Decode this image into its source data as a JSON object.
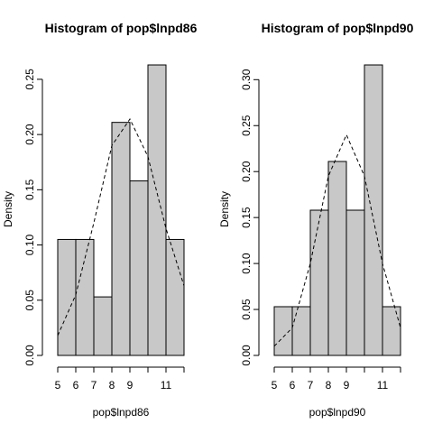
{
  "chart_data": [
    {
      "type": "bar",
      "title": "Histogram of pop$lnpd86",
      "xlabel": "pop$lnpd86",
      "ylabel": "Density",
      "bins": [
        [
          5,
          6
        ],
        [
          6,
          7
        ],
        [
          7,
          8
        ],
        [
          8,
          9
        ],
        [
          9,
          10
        ],
        [
          10,
          11
        ],
        [
          11,
          12
        ]
      ],
      "values": [
        0.105,
        0.105,
        0.053,
        0.211,
        0.158,
        0.263,
        0.105
      ],
      "xlim": [
        5,
        12
      ],
      "ylim": [
        0,
        0.263
      ],
      "xticks": [
        "5",
        "6",
        "7",
        "8",
        "9",
        "11"
      ],
      "yticks": [
        "0.00",
        "0.05",
        "0.10",
        "0.15",
        "0.20",
        "0.25"
      ],
      "density_curve": {
        "style": "dashed",
        "x": [
          5,
          6,
          7,
          8,
          9,
          10,
          11,
          12
        ],
        "y": [
          0.018,
          0.055,
          0.12,
          0.19,
          0.214,
          0.18,
          0.115,
          0.063
        ]
      }
    },
    {
      "type": "bar",
      "title": "Histogram of pop$lnpd90",
      "xlabel": "pop$lnpd90",
      "ylabel": "Density",
      "bins": [
        [
          5,
          6
        ],
        [
          6,
          7
        ],
        [
          7,
          8
        ],
        [
          8,
          9
        ],
        [
          9,
          10
        ],
        [
          10,
          11
        ],
        [
          11,
          12
        ]
      ],
      "values": [
        0.053,
        0.053,
        0.158,
        0.211,
        0.158,
        0.316,
        0.053
      ],
      "xlim": [
        5,
        12
      ],
      "ylim": [
        0,
        0.316
      ],
      "xticks": [
        "5",
        "6",
        "7",
        "8",
        "9",
        "11"
      ],
      "yticks": [
        "0.00",
        "0.05",
        "0.10",
        "0.15",
        "0.20",
        "0.25",
        "0.30"
      ],
      "density_curve": {
        "style": "dashed",
        "x": [
          5,
          6,
          7,
          8,
          9,
          10,
          11,
          12
        ],
        "y": [
          0.01,
          0.03,
          0.1,
          0.195,
          0.24,
          0.195,
          0.1,
          0.03
        ]
      }
    }
  ]
}
